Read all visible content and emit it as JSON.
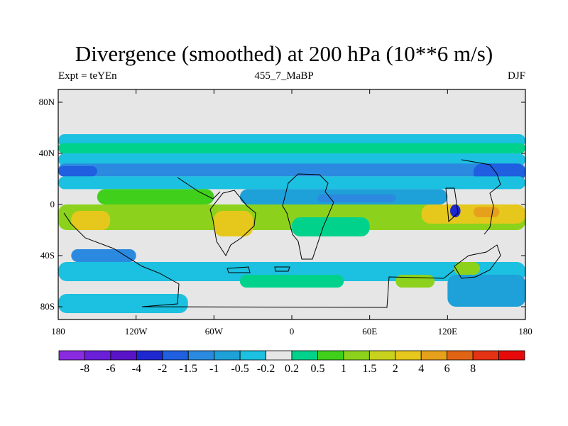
{
  "chart_data": {
    "type": "heatmap",
    "title": "Divergence (smoothed) at 200 hPa (10**6 m/s)",
    "subtitle_left": "Expt = teYEn",
    "subtitle_center": "455_7_MaBP",
    "subtitle_right": "DJF",
    "x_ticks": [
      {
        "value": -180,
        "label": "180"
      },
      {
        "value": -120,
        "label": "120W"
      },
      {
        "value": -60,
        "label": "60W"
      },
      {
        "value": 0,
        "label": "0"
      },
      {
        "value": 60,
        "label": "60E"
      },
      {
        "value": 120,
        "label": "120E"
      },
      {
        "value": 180,
        "label": "180"
      }
    ],
    "y_ticks": [
      {
        "value": 80,
        "label": "80N"
      },
      {
        "value": 40,
        "label": "40N"
      },
      {
        "value": 0,
        "label": "0"
      },
      {
        "value": -40,
        "label": "40S"
      },
      {
        "value": -80,
        "label": "80S"
      }
    ],
    "xlim": [
      -180,
      180
    ],
    "ylim": [
      -90,
      90
    ],
    "colorbar": {
      "colors": [
        "#8a2be2",
        "#6a1fd8",
        "#5a14c8",
        "#1e28d0",
        "#1f5fe0",
        "#2b8ae0",
        "#1ea0d8",
        "#1cc0e0",
        "#e6e6e6",
        "#00d28c",
        "#40d01c",
        "#8cd21c",
        "#c8d21c",
        "#e6c81c",
        "#e6a01c",
        "#e06414",
        "#e63214",
        "#e60a0a"
      ],
      "labels": [
        "-8",
        "-6",
        "-4",
        "-2",
        "-1.5",
        "-1",
        "-0.5",
        "-0.2",
        "0.2",
        "0.5",
        "1",
        "1.5",
        "2",
        "4",
        "6",
        "8"
      ]
    },
    "background_level": 8,
    "field_regions": [
      {
        "level": 7,
        "lon_min": -180,
        "lon_max": 180,
        "lat_min": 45,
        "lat_max": 55
      },
      {
        "level": 9,
        "lon_min": -180,
        "lon_max": 180,
        "lat_min": 40,
        "lat_max": 48
      },
      {
        "level": 7,
        "lon_min": -180,
        "lon_max": 180,
        "lat_min": 30,
        "lat_max": 40
      },
      {
        "level": 5,
        "lon_min": -180,
        "lon_max": 180,
        "lat_min": 22,
        "lat_max": 32
      },
      {
        "level": 4,
        "lon_min": -180,
        "lon_max": -150,
        "lat_min": 22,
        "lat_max": 30
      },
      {
        "level": 4,
        "lon_min": 140,
        "lon_max": 180,
        "lat_min": 18,
        "lat_max": 32
      },
      {
        "level": 7,
        "lon_min": -180,
        "lon_max": 180,
        "lat_min": 12,
        "lat_max": 22
      },
      {
        "level": 10,
        "lon_min": -150,
        "lon_max": -60,
        "lat_min": 0,
        "lat_max": 12
      },
      {
        "level": 6,
        "lon_min": -40,
        "lon_max": 120,
        "lat_min": 0,
        "lat_max": 12
      },
      {
        "level": 5,
        "lon_min": 20,
        "lon_max": 80,
        "lat_min": 2,
        "lat_max": 8
      },
      {
        "level": 11,
        "lon_min": -180,
        "lon_max": 180,
        "lat_min": -20,
        "lat_max": 0
      },
      {
        "level": 13,
        "lon_min": -170,
        "lon_max": -140,
        "lat_min": -20,
        "lat_max": -5
      },
      {
        "level": 13,
        "lon_min": -60,
        "lon_max": -30,
        "lat_min": -25,
        "lat_max": -5
      },
      {
        "level": 13,
        "lon_min": 100,
        "lon_max": 180,
        "lat_min": -15,
        "lat_max": 0
      },
      {
        "level": 14,
        "lon_min": 140,
        "lon_max": 160,
        "lat_min": -10,
        "lat_max": -2
      },
      {
        "level": 3,
        "lon_min": 122,
        "lon_max": 130,
        "lat_min": -10,
        "lat_max": 0
      },
      {
        "level": 9,
        "lon_min": 0,
        "lon_max": 60,
        "lat_min": -25,
        "lat_max": -10
      },
      {
        "level": 7,
        "lon_min": -180,
        "lon_max": 180,
        "lat_min": -60,
        "lat_max": -45
      },
      {
        "level": 9,
        "lon_min": -40,
        "lon_max": 40,
        "lat_min": -65,
        "lat_max": -55
      },
      {
        "level": 11,
        "lon_min": 80,
        "lon_max": 110,
        "lat_min": -65,
        "lat_max": -55
      },
      {
        "level": 6,
        "lon_min": 120,
        "lon_max": 180,
        "lat_min": -80,
        "lat_max": -55
      },
      {
        "level": 7,
        "lon_min": -180,
        "lon_max": -80,
        "lat_min": -85,
        "lat_max": -70
      },
      {
        "level": 5,
        "lon_min": -170,
        "lon_max": -120,
        "lat_min": -45,
        "lat_max": -35
      },
      {
        "level": 11,
        "lon_min": 125,
        "lon_max": 145,
        "lat_min": -55,
        "lat_max": -45
      }
    ]
  }
}
